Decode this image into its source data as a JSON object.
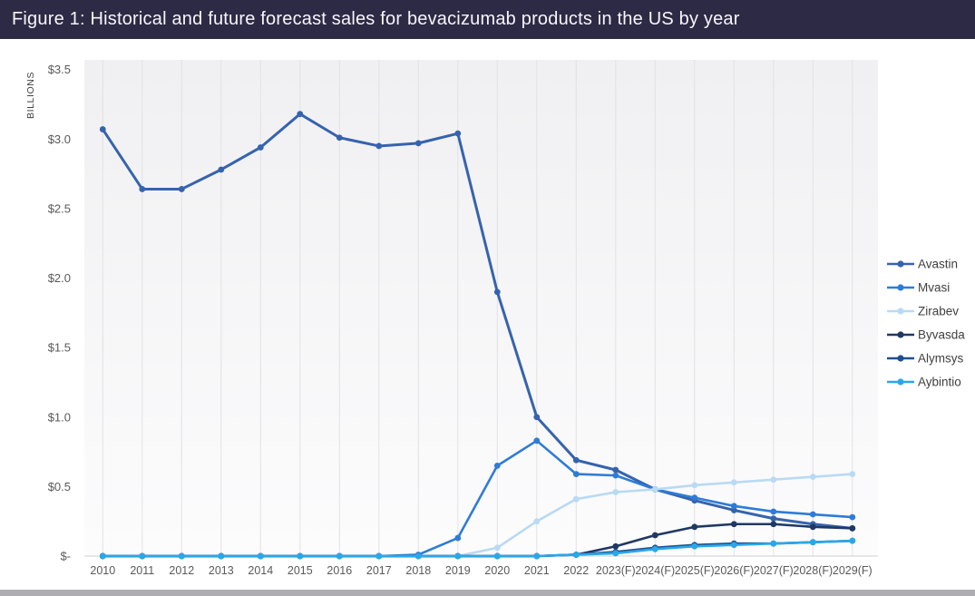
{
  "title_bar": {
    "title": "Figure 1: Historical and future forecast sales for bevacizumab products in the US by year"
  },
  "chart_data": {
    "type": "line",
    "title": "Figure 1: Historical and future forecast sales for bevacizumab products in the US by year",
    "ylabel": "BILLIONS",
    "xlabel": "",
    "ylim": [
      0,
      3.5
    ],
    "grid": "vertical-only",
    "legend_position": "right",
    "y_ticks": [
      {
        "label": "$3.5",
        "value": 3.5
      },
      {
        "label": "$3.0",
        "value": 3.0
      },
      {
        "label": "$2.5",
        "value": 2.5
      },
      {
        "label": "$2.0",
        "value": 2.0
      },
      {
        "label": "$1.5",
        "value": 1.5
      },
      {
        "label": "$1.0",
        "value": 1.0
      },
      {
        "label": "$0.5",
        "value": 0.5
      },
      {
        "label": "$-",
        "value": 0
      }
    ],
    "categories": [
      "2010",
      "2011",
      "2012",
      "2013",
      "2014",
      "2015",
      "2016",
      "2017",
      "2018",
      "2019",
      "2020",
      "2021",
      "2022",
      "2023(F)",
      "2024(F)",
      "2025(F)",
      "2026(F)",
      "2027(F)",
      "2028(F)",
      "2029(F)"
    ],
    "series": [
      {
        "name": "Avastin",
        "color": "#3663AE",
        "values": [
          3.07,
          2.64,
          2.64,
          2.78,
          2.94,
          3.18,
          3.01,
          2.95,
          2.97,
          3.04,
          1.9,
          1.0,
          0.69,
          0.62,
          0.48,
          0.4,
          0.33,
          0.27,
          0.23,
          0.2
        ]
      },
      {
        "name": "Mvasi",
        "color": "#2E7CD6",
        "values": [
          0,
          0,
          0,
          0,
          0,
          0,
          0,
          0,
          0.01,
          0.13,
          0.65,
          0.83,
          0.59,
          0.58,
          0.48,
          0.42,
          0.36,
          0.32,
          0.3,
          0.28
        ]
      },
      {
        "name": "Zirabev",
        "color": "#B9DAF4",
        "values": [
          0,
          0,
          0,
          0,
          0,
          0,
          0,
          0,
          0,
          0,
          0.06,
          0.25,
          0.41,
          0.46,
          0.48,
          0.51,
          0.53,
          0.55,
          0.57,
          0.59
        ]
      },
      {
        "name": "Byvasda",
        "color": "#1F3864",
        "values": [
          0,
          0,
          0,
          0,
          0,
          0,
          0,
          0,
          0,
          0,
          0,
          0,
          0.01,
          0.07,
          0.15,
          0.21,
          0.23,
          0.23,
          0.21,
          0.2
        ]
      },
      {
        "name": "Alymsys",
        "color": "#20508F",
        "values": [
          0,
          0,
          0,
          0,
          0,
          0,
          0,
          0,
          0,
          0,
          0,
          0,
          0.01,
          0.03,
          0.06,
          0.08,
          0.09,
          0.09,
          0.1,
          0.11
        ]
      },
      {
        "name": "Aybintio",
        "color": "#29A8E8",
        "values": [
          0,
          0,
          0,
          0,
          0,
          0,
          0,
          0,
          0,
          0,
          0,
          0,
          0.01,
          0.02,
          0.05,
          0.07,
          0.08,
          0.09,
          0.1,
          0.11
        ]
      }
    ]
  },
  "colors": {
    "titlebar_bg": "#2D2A45",
    "footer_bar": "#AEAEB2",
    "axis_text": "#595959",
    "ylabel_text": "#3F3F3F",
    "legend_text": "#404040",
    "gridline": "#E2E2E5",
    "baseline": "#CFCFD2",
    "panel_top": "#F0F0F2",
    "panel_bottom": "#FCFCFD"
  }
}
